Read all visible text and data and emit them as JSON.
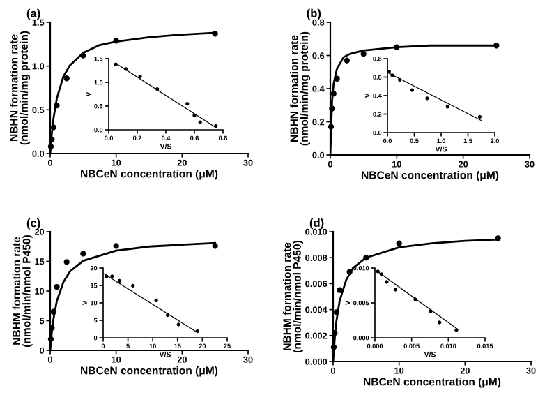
{
  "chart_data": [
    {
      "type": "scatter",
      "title": "(a)",
      "xlabel": "NBCeN concentration (μM)",
      "ylabel": "NBHN formation rate\n(nmol/min/mg protein)",
      "xlim": [
        0,
        30
      ],
      "xticks": [
        0,
        10,
        20,
        30
      ],
      "ylim": [
        0,
        1.5
      ],
      "yticks": [
        {
          "value": 0,
          "label": "0.0"
        },
        {
          "value": 0.5,
          "label": "0.5"
        },
        {
          "value": 1,
          "label": "1.0"
        },
        {
          "value": 1.5,
          "label": "1.5"
        }
      ],
      "grid": false,
      "legend": false,
      "series": [
        {
          "marker": "circle",
          "color": "#000000",
          "x": [
            0.1,
            0.25,
            0.5,
            1,
            2.5,
            5,
            10,
            25
          ],
          "values": [
            0.08,
            0.16,
            0.3,
            0.55,
            0.86,
            1.12,
            1.29,
            1.37
          ]
        },
        {
          "type": "line",
          "marker": "none",
          "color": "#000000",
          "x": [
            0,
            0.25,
            0.5,
            1,
            2,
            3,
            5,
            7.5,
            10,
            15,
            20,
            25
          ],
          "values": [
            0,
            0.23,
            0.4,
            0.63,
            0.88,
            1.01,
            1.15,
            1.24,
            1.28,
            1.33,
            1.36,
            1.38
          ]
        }
      ]
    },
    {
      "type": "scatter",
      "xlabel": "V/S",
      "ylabel": "V",
      "xlim": [
        0,
        0.8
      ],
      "xticks": [
        {
          "value": 0,
          "label": "0.0"
        },
        0.2,
        0.4,
        0.6,
        0.8
      ],
      "ylim": [
        0,
        1.5
      ],
      "yticks": [
        {
          "value": 0,
          "label": "0.0"
        },
        0.5,
        {
          "value": 1,
          "label": "1.0"
        },
        1.5
      ],
      "grid": false,
      "legend": false,
      "series": [
        {
          "marker": "circle",
          "color": "#000000",
          "x": [
            0.05,
            0.12,
            0.22,
            0.34,
            0.55,
            0.6,
            0.64,
            0.75
          ],
          "values": [
            1.38,
            1.28,
            1.12,
            0.86,
            0.55,
            0.3,
            0.16,
            0.08
          ]
        },
        {
          "type": "line",
          "marker": "none",
          "color": "#000000",
          "x": [
            0.05,
            0.75
          ],
          "values": [
            1.4,
            0.05
          ]
        }
      ]
    },
    {
      "type": "scatter",
      "title": "(b)",
      "xlabel": "NBCeN concentration (μM)",
      "ylabel": "NBHN formation rate\n(nmol/min/mg protein)",
      "xlim": [
        0,
        30
      ],
      "xticks": [
        0,
        10,
        20,
        30
      ],
      "ylim": [
        0,
        0.8
      ],
      "yticks": [
        {
          "value": 0,
          "label": "0.0"
        },
        0.2,
        0.4,
        0.6,
        0.8
      ],
      "grid": false,
      "legend": false,
      "series": [
        {
          "marker": "circle",
          "color": "#000000",
          "x": [
            0.1,
            0.25,
            0.5,
            1,
            2.5,
            5,
            10,
            25
          ],
          "values": [
            0.17,
            0.28,
            0.37,
            0.46,
            0.57,
            0.61,
            0.65,
            0.66
          ]
        },
        {
          "type": "line",
          "marker": "none",
          "color": "#000000",
          "x": [
            0,
            0.25,
            0.5,
            1,
            2,
            3,
            5,
            10,
            15,
            20,
            25
          ],
          "values": [
            0,
            0.32,
            0.43,
            0.52,
            0.59,
            0.61,
            0.63,
            0.65,
            0.66,
            0.66,
            0.66
          ]
        }
      ]
    },
    {
      "type": "scatter",
      "xlabel": "V/S",
      "ylabel": "V",
      "xlim": [
        0,
        2
      ],
      "xticks": [
        {
          "value": 0,
          "label": "0.0"
        },
        0.5,
        {
          "value": 1,
          "label": "1.0"
        },
        1.5,
        {
          "value": 2,
          "label": "2.0"
        }
      ],
      "ylim": [
        0,
        0.8
      ],
      "yticks": [
        {
          "value": 0,
          "label": "0.0"
        },
        0.2,
        0.4,
        0.6,
        0.8
      ],
      "grid": false,
      "legend": false,
      "series": [
        {
          "marker": "circle",
          "color": "#000000",
          "x": [
            0.03,
            0.09,
            0.23,
            0.46,
            0.74,
            1.12,
            1.72
          ],
          "values": [
            0.66,
            0.62,
            0.57,
            0.46,
            0.37,
            0.28,
            0.17
          ]
        },
        {
          "type": "line",
          "marker": "none",
          "color": "#000000",
          "x": [
            0,
            1.75
          ],
          "values": [
            0.65,
            0.13
          ]
        }
      ]
    },
    {
      "type": "scatter",
      "title": "(c)",
      "xlabel": "NBCeN concentration (μM)",
      "ylabel": "NBHM formation rate\n(nmol/min/nmol P450)",
      "xlim": [
        0,
        30
      ],
      "xticks": [
        0,
        10,
        20,
        30
      ],
      "ylim": [
        0,
        20
      ],
      "yticks": [
        0,
        5,
        10,
        15,
        20
      ],
      "grid": false,
      "legend": false,
      "series": [
        {
          "marker": "circle",
          "color": "#000000",
          "x": [
            0.1,
            0.25,
            0.5,
            1,
            2.5,
            5,
            10,
            25
          ],
          "values": [
            1.9,
            3.8,
            6.5,
            10.7,
            14.9,
            16.3,
            17.6,
            17.6
          ]
        },
        {
          "type": "line",
          "marker": "none",
          "color": "#000000",
          "x": [
            0,
            0.25,
            0.5,
            1,
            2,
            3,
            5,
            10,
            15,
            20,
            25
          ],
          "values": [
            0,
            3.1,
            5.3,
            8.3,
            11.5,
            13.3,
            15.1,
            16.8,
            17.5,
            17.8,
            18.1
          ]
        }
      ]
    },
    {
      "type": "scatter",
      "xlabel": "V/S",
      "ylabel": "V",
      "xlim": [
        0,
        25
      ],
      "xticks": [
        0,
        5,
        10,
        15,
        20,
        25
      ],
      "ylim": [
        0,
        20
      ],
      "yticks": [
        0,
        5,
        10,
        15,
        20
      ],
      "grid": false,
      "legend": false,
      "series": [
        {
          "marker": "circle",
          "color": "#000000",
          "x": [
            0.7,
            1.8,
            3.3,
            6,
            10.7,
            13,
            15.2,
            19
          ],
          "values": [
            17.6,
            17.6,
            16.3,
            14.9,
            10.7,
            6.5,
            3.8,
            1.9
          ]
        },
        {
          "type": "line",
          "marker": "none",
          "color": "#000000",
          "x": [
            0,
            19
          ],
          "values": [
            18.5,
            1.5
          ]
        }
      ]
    },
    {
      "type": "scatter",
      "title": "(d)",
      "xlabel": "NBCeN concentration (μM)",
      "ylabel": "NBHM formation rate\n(nmol/min/nmol P450)",
      "xlim": [
        0,
        30
      ],
      "xticks": [
        0,
        10,
        20,
        30
      ],
      "ylim": [
        0,
        0.01
      ],
      "yticks": [
        {
          "value": 0,
          "label": "0.000"
        },
        {
          "value": 0.002,
          "label": "0.002"
        },
        {
          "value": 0.004,
          "label": "0.004"
        },
        {
          "value": 0.006,
          "label": "0.006"
        },
        {
          "value": 0.008,
          "label": "0.008"
        },
        {
          "value": 0.01,
          "label": "0.010"
        }
      ],
      "grid": false,
      "legend": false,
      "series": [
        {
          "marker": "circle",
          "color": "#000000",
          "x": [
            0.1,
            0.25,
            0.5,
            1,
            2.5,
            5,
            10,
            25
          ],
          "values": [
            0.0011,
            0.0022,
            0.0038,
            0.0055,
            0.0069,
            0.008,
            0.0091,
            0.0095
          ]
        },
        {
          "type": "line",
          "marker": "none",
          "color": "#000000",
          "x": [
            0,
            0.25,
            0.5,
            1,
            2,
            3,
            5,
            10,
            15,
            20,
            25
          ],
          "values": [
            0,
            0.0018,
            0.0031,
            0.0047,
            0.0063,
            0.0072,
            0.008,
            0.0088,
            0.0091,
            0.0093,
            0.0094
          ]
        }
      ]
    },
    {
      "type": "scatter",
      "xlabel": "V/S",
      "ylabel": "V",
      "xlim": [
        0,
        0.015
      ],
      "xticks": [
        {
          "value": 0,
          "label": "0.000"
        },
        {
          "value": 0.005,
          "label": "0.005"
        },
        {
          "value": 0.01,
          "label": "0.010"
        },
        {
          "value": 0.015,
          "label": "0.015"
        }
      ],
      "ylim": [
        0,
        0.01
      ],
      "yticks": [
        {
          "value": 0,
          "label": "0.000"
        },
        {
          "value": 0.005,
          "label": "0.005"
        },
        {
          "value": 0.01,
          "label": "0.010"
        }
      ],
      "grid": false,
      "legend": false,
      "series": [
        {
          "marker": "circle",
          "color": "#000000",
          "x": [
            0.0004,
            0.0009,
            0.0016,
            0.0028,
            0.0055,
            0.0076,
            0.0088,
            0.0111
          ],
          "values": [
            0.0095,
            0.0091,
            0.008,
            0.0069,
            0.0055,
            0.0038,
            0.0022,
            0.0011
          ]
        },
        {
          "type": "line",
          "marker": "none",
          "color": "#000000",
          "x": [
            0.0001,
            0.0113
          ],
          "values": [
            0.0097,
            0.0012
          ]
        }
      ]
    }
  ]
}
